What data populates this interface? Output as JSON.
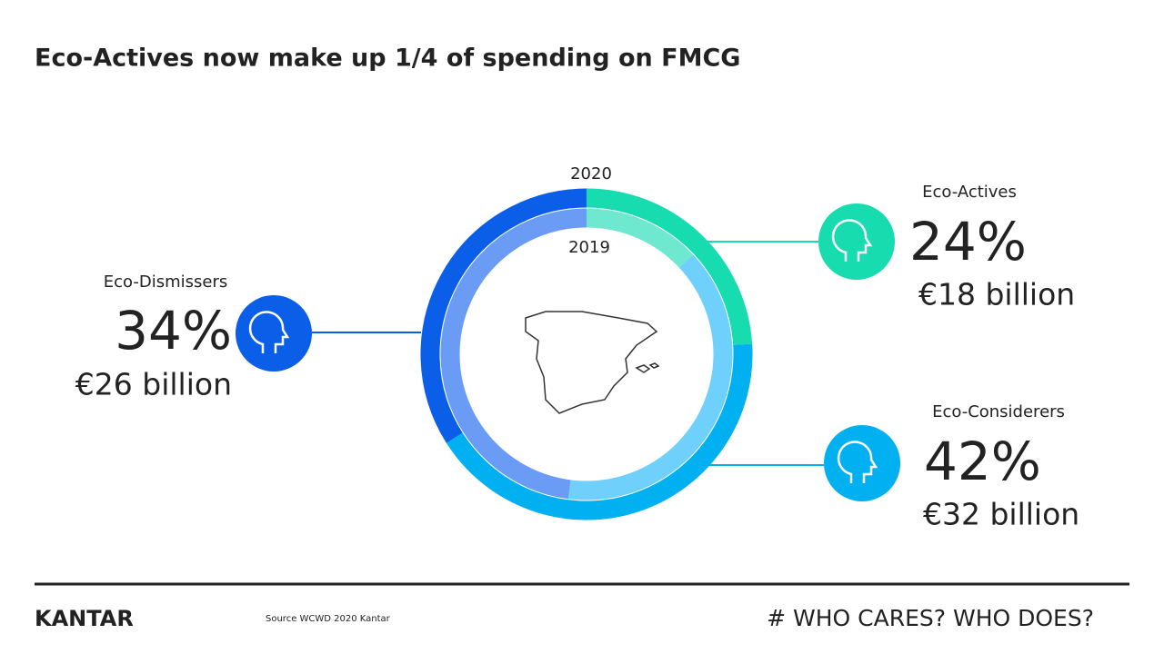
{
  "chart_data": {
    "type": "donut",
    "title": "Eco-Actives now make up 1/4 of spending on FMCG",
    "categories": [
      "Eco-Actives",
      "Eco-Considerers",
      "Eco-Dismissers"
    ],
    "rings": [
      {
        "name": "2020",
        "values": [
          24,
          42,
          34
        ],
        "value_labels": [
          "24%",
          "42%",
          "34%"
        ],
        "colors": [
          "#16dcb0",
          "#00b0f0",
          "#0a5ee8"
        ]
      },
      {
        "name": "2019",
        "values": [
          13,
          39,
          48
        ],
        "colors": [
          "#6ee8cf",
          "#6fd0fb",
          "#6a9cf5"
        ]
      }
    ],
    "amounts": [
      "€18 billion",
      "€32 billion",
      "€26 billion"
    ]
  },
  "footer": {
    "brand": "KANTAR",
    "source": "Source WCWD 2020 Kantar",
    "tagline": "# WHO CARES? WHO DOES?"
  }
}
